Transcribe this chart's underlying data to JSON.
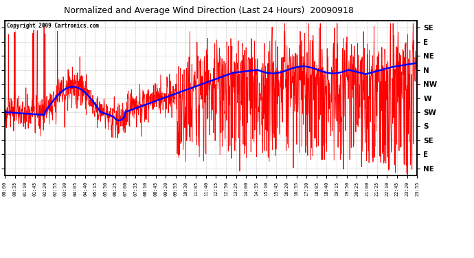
{
  "title": "Normalized and Average Wind Direction (Last 24 Hours)  20090918",
  "copyright": "Copyright 2009 Cartronics.com",
  "background_color": "#ffffff",
  "plot_bg_color": "#ffffff",
  "grid_color": "#bbbbbb",
  "ytick_labels": [
    "SE",
    "E",
    "NE",
    "N",
    "NW",
    "W",
    "SW",
    "S",
    "SE",
    "E",
    "NE"
  ],
  "ytick_values": [
    0,
    1,
    2,
    3,
    4,
    5,
    6,
    7,
    8,
    9,
    10
  ],
  "xtick_labels": [
    "00:00",
    "00:35",
    "01:10",
    "01:45",
    "02:20",
    "02:55",
    "03:30",
    "04:05",
    "04:40",
    "05:15",
    "05:50",
    "06:25",
    "07:00",
    "07:35",
    "08:10",
    "08:45",
    "09:20",
    "09:55",
    "10:30",
    "11:05",
    "11:40",
    "12:15",
    "12:50",
    "13:25",
    "14:00",
    "14:35",
    "15:10",
    "15:45",
    "16:20",
    "16:55",
    "17:30",
    "18:05",
    "18:40",
    "19:15",
    "19:50",
    "20:25",
    "21:00",
    "21:35",
    "22:10",
    "22:45",
    "23:20",
    "23:55"
  ],
  "red_line_color": "#ff0000",
  "blue_line_color": "#0000ff",
  "n_points": 1440,
  "seed": 42
}
